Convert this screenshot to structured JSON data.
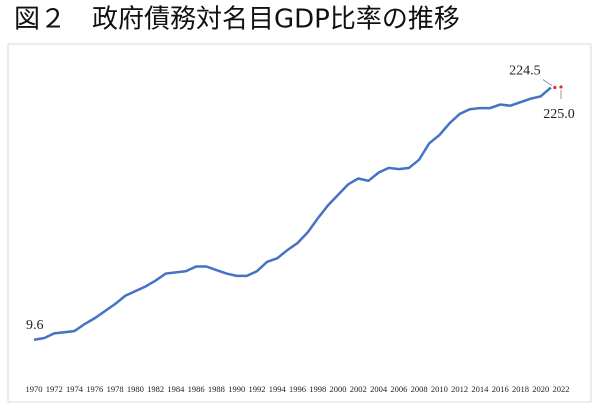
{
  "chart_data": {
    "type": "line",
    "title": "図２　政府債務対名目GDP比率の推移",
    "x": [
      1970,
      1971,
      1972,
      1973,
      1974,
      1975,
      1976,
      1977,
      1978,
      1979,
      1980,
      1981,
      1982,
      1983,
      1984,
      1985,
      1986,
      1987,
      1988,
      1989,
      1990,
      1991,
      1992,
      1993,
      1994,
      1995,
      1996,
      1997,
      1998,
      1999,
      2000,
      2001,
      2002,
      2003,
      2004,
      2005,
      2006,
      2007,
      2008,
      2009,
      2010,
      2011,
      2012,
      2013,
      2014,
      2015,
      2016,
      2017,
      2018,
      2019,
      2020,
      2021,
      2022
    ],
    "series": [
      {
        "color": "#4472c4",
        "values": [
          9.6,
          11,
          15,
          16,
          17,
          23,
          28,
          34,
          40,
          47,
          51,
          55,
          60,
          66,
          67,
          68,
          72,
          72,
          69,
          66,
          64,
          64,
          68,
          76,
          79,
          86,
          92,
          101,
          113,
          124,
          133,
          142,
          147,
          145,
          152,
          156,
          155,
          156,
          163,
          177,
          184,
          194,
          202,
          206,
          207,
          207,
          210,
          209,
          212,
          215,
          217,
          224.5,
          null
        ]
      },
      {
        "color": "#e03030",
        "values": [
          null,
          null,
          null,
          null,
          null,
          null,
          null,
          null,
          null,
          null,
          null,
          null,
          null,
          null,
          null,
          null,
          null,
          null,
          null,
          null,
          null,
          null,
          null,
          null,
          null,
          null,
          null,
          null,
          null,
          null,
          null,
          null,
          null,
          null,
          null,
          null,
          null,
          null,
          null,
          null,
          null,
          null,
          null,
          null,
          null,
          null,
          null,
          null,
          null,
          null,
          null,
          224.5,
          225.0
        ],
        "value_labels": [
          null,
          null,
          null,
          null,
          null,
          null,
          null,
          null,
          null,
          null,
          null,
          null,
          null,
          null,
          null,
          null,
          null,
          null,
          null,
          null,
          null,
          null,
          null,
          null,
          null,
          null,
          null,
          null,
          null,
          null,
          null,
          null,
          null,
          null,
          null,
          null,
          null,
          null,
          null,
          null,
          null,
          null,
          null,
          null,
          null,
          null,
          null,
          null,
          null,
          null,
          null,
          "224.5",
          "225.0"
        ]
      }
    ],
    "xlim": [
      1970,
      2022
    ],
    "xticks": [
      1970,
      1972,
      1974,
      1976,
      1978,
      1980,
      1982,
      1984,
      1986,
      1988,
      1990,
      1992,
      1994,
      1996,
      1998,
      2000,
      2002,
      2004,
      2006,
      2008,
      2010,
      2012,
      2014,
      2016,
      2018,
      2020,
      2022
    ],
    "ylim": [
      0,
      265
    ]
  }
}
